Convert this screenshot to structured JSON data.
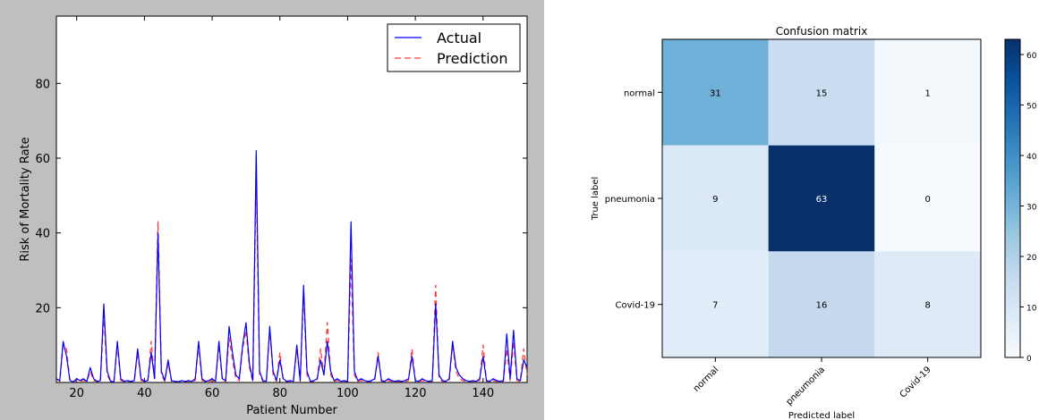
{
  "chart_data": [
    {
      "type": "line",
      "xlabel": "Patient Number",
      "ylabel": "Risk of Mortality Rate",
      "xlim": [
        14,
        153
      ],
      "ylim": [
        0,
        98
      ],
      "xticks": [
        20,
        40,
        60,
        80,
        100,
        120,
        140
      ],
      "yticks": [
        20,
        40,
        60,
        80
      ],
      "legend_position": "top-right",
      "colors": {
        "actual": "#0000ff",
        "prediction": "#ff3b3b",
        "frame_bg": "#bfbfbf"
      },
      "x": [
        14,
        15,
        16,
        17,
        18,
        19,
        20,
        21,
        22,
        23,
        24,
        25,
        26,
        27,
        28,
        29,
        30,
        31,
        32,
        33,
        34,
        35,
        36,
        37,
        38,
        39,
        40,
        41,
        42,
        43,
        44,
        45,
        46,
        47,
        48,
        49,
        50,
        51,
        52,
        53,
        54,
        55,
        56,
        57,
        58,
        59,
        60,
        61,
        62,
        63,
        64,
        65,
        66,
        67,
        68,
        69,
        70,
        71,
        72,
        73,
        74,
        75,
        76,
        77,
        78,
        79,
        80,
        81,
        82,
        83,
        84,
        85,
        86,
        87,
        88,
        89,
        90,
        91,
        92,
        93,
        94,
        95,
        96,
        97,
        98,
        99,
        100,
        101,
        102,
        103,
        104,
        105,
        106,
        107,
        108,
        109,
        110,
        111,
        112,
        113,
        114,
        115,
        116,
        117,
        118,
        119,
        120,
        121,
        122,
        123,
        124,
        125,
        126,
        127,
        128,
        129,
        130,
        131,
        132,
        133,
        134,
        135,
        136,
        137,
        138,
        139,
        140,
        141,
        142,
        143,
        144,
        145,
        146,
        147,
        148,
        149,
        150,
        151,
        152,
        153
      ],
      "series": [
        {
          "name": "Actual",
          "style": "solid",
          "values": [
            1,
            0.5,
            11,
            7,
            0.5,
            0.2,
            1,
            0.5,
            1,
            0.3,
            4,
            1,
            0.3,
            0.5,
            21,
            3,
            0.3,
            0.2,
            11,
            1,
            0.3,
            0.5,
            0.3,
            0.5,
            9,
            1,
            0.3,
            0.5,
            8,
            1,
            40,
            3,
            0.5,
            6,
            0.5,
            0.3,
            0.2,
            0.5,
            0.3,
            0.5,
            0.3,
            1,
            11,
            1,
            0.3,
            0.5,
            1,
            0.3,
            11,
            1,
            0.5,
            15,
            8,
            2,
            1,
            10,
            16,
            5,
            0.5,
            62,
            3,
            0.5,
            0.3,
            15,
            3,
            0.5,
            6,
            1,
            0.3,
            0.5,
            0.3,
            10,
            0.5,
            26,
            3,
            0.3,
            0.5,
            1,
            6,
            2,
            11,
            3,
            0.5,
            1,
            0.3,
            0.5,
            0.3,
            43,
            3,
            0.5,
            1,
            0.5,
            0.3,
            0.5,
            1,
            7,
            0.5,
            0.3,
            1,
            0.5,
            0.3,
            0.5,
            0.3,
            0.5,
            1,
            7,
            0.5,
            0.3,
            1,
            0.5,
            0.3,
            0.5,
            21,
            2,
            0.5,
            0.3,
            1,
            11,
            4,
            2,
            1,
            0.5,
            0.3,
            0.5,
            0.3,
            1,
            7,
            0.5,
            0.3,
            1,
            0.5,
            0.3,
            0.5,
            13,
            1,
            14,
            1,
            0.5,
            6,
            4
          ]
        },
        {
          "name": "Prediction",
          "style": "dashed",
          "values": [
            1,
            0.3,
            10,
            9,
            0.3,
            0.2,
            0.5,
            0.3,
            0.5,
            0.3,
            3,
            0.5,
            0.3,
            0.3,
            18,
            2,
            0.3,
            0.2,
            10,
            0.5,
            0.3,
            0.3,
            0.3,
            0.3,
            8,
            0.5,
            0.3,
            0.3,
            11,
            0.5,
            43,
            2,
            0.3,
            5,
            0.3,
            0.3,
            0.2,
            0.3,
            0.3,
            0.3,
            0.3,
            0.5,
            10,
            0.5,
            0.3,
            0.3,
            0.5,
            0.3,
            10,
            0.5,
            0.3,
            12,
            6,
            1,
            0.5,
            9,
            14,
            4,
            0.3,
            56,
            2,
            0.3,
            0.3,
            14,
            2,
            0.3,
            8,
            0.5,
            0.3,
            0.3,
            0.3,
            9,
            0.3,
            24,
            2,
            0.3,
            0.3,
            0.5,
            9,
            2,
            16,
            2,
            0.3,
            0.5,
            0.3,
            0.3,
            0.3,
            33,
            2,
            0.3,
            0.5,
            0.3,
            0.3,
            0.3,
            0.5,
            8,
            0.3,
            0.3,
            0.5,
            0.3,
            0.3,
            0.3,
            0.3,
            0.3,
            0.5,
            9,
            0.3,
            0.3,
            0.5,
            0.3,
            0.3,
            0.3,
            26,
            1,
            0.3,
            0.3,
            0.5,
            10,
            3,
            1,
            0.5,
            0.3,
            0.3,
            0.3,
            0.3,
            0.5,
            10,
            0.3,
            0.3,
            0.5,
            0.3,
            0.3,
            0.3,
            9,
            0.5,
            11,
            0.5,
            0.3,
            9,
            2
          ]
        }
      ]
    },
    {
      "type": "heatmap",
      "title": "Confusion matrix",
      "xlabel": "Predicted label",
      "ylabel": "True label",
      "row_labels": [
        "normal",
        "pneumonia",
        "Covid-19"
      ],
      "col_labels": [
        "normal",
        "pneumonia",
        "Covid-19"
      ],
      "values": [
        [
          31,
          15,
          1
        ],
        [
          9,
          63,
          0
        ],
        [
          7,
          16,
          8
        ]
      ],
      "colorbar_ticks": [
        "0",
        "10",
        "20",
        "30",
        "40",
        "50",
        "60"
      ],
      "colorbar_range": [
        0,
        63
      ],
      "colormap": "Blues",
      "colors": {
        "low": "#f7fbff",
        "high": "#08306b"
      }
    }
  ]
}
